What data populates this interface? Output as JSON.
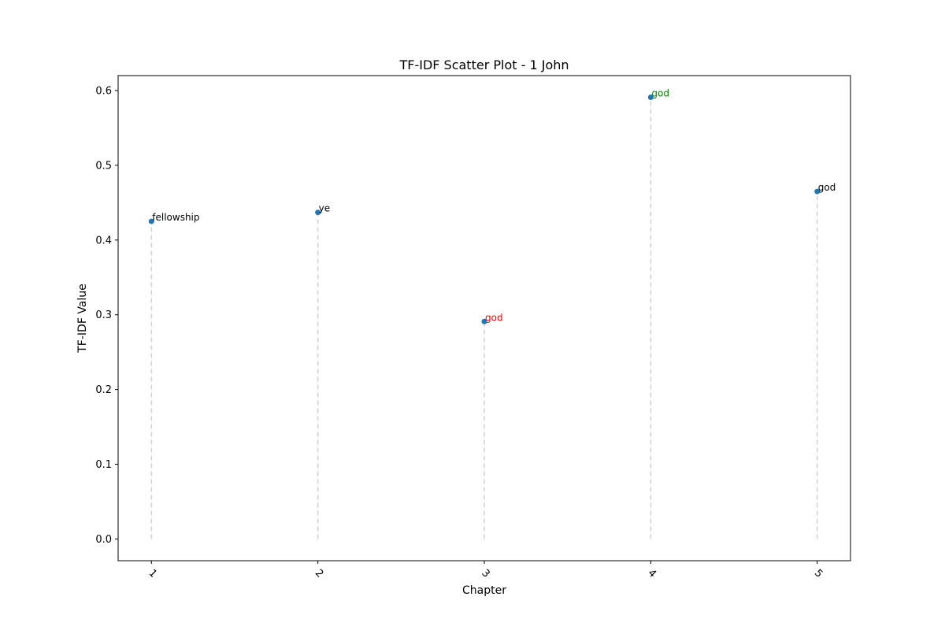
{
  "chart_data": {
    "type": "scatter",
    "title": "TF-IDF Scatter Plot - 1 John",
    "xlabel": "Chapter",
    "ylabel": "TF-IDF Value",
    "x_ticks": [
      "1",
      "2",
      "3",
      "4",
      "5"
    ],
    "y_ticks": [
      "0.0",
      "0.1",
      "0.2",
      "0.3",
      "0.4",
      "0.5",
      "0.6"
    ],
    "xlim": [
      0.8,
      5.2
    ],
    "ylim": [
      -0.029,
      0.62
    ],
    "grid": false,
    "marker_color": "#1f77b4",
    "stem_color": "#d3d3d3",
    "points": [
      {
        "x": 1,
        "y": 0.425,
        "label": "fellowship",
        "label_color": "#000000"
      },
      {
        "x": 2,
        "y": 0.437,
        "label": "ye",
        "label_color": "#000000"
      },
      {
        "x": 3,
        "y": 0.291,
        "label": "god",
        "label_color": "#ff0000"
      },
      {
        "x": 4,
        "y": 0.591,
        "label": "god",
        "label_color": "#008000"
      },
      {
        "x": 5,
        "y": 0.465,
        "label": "god",
        "label_color": "#000000"
      }
    ]
  }
}
